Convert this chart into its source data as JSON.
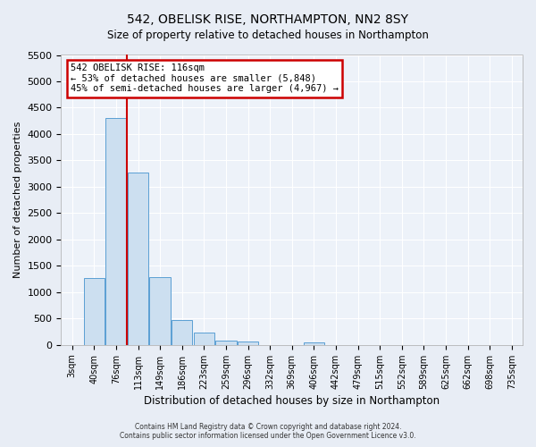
{
  "title": "542, OBELISK RISE, NORTHAMPTON, NN2 8SY",
  "subtitle": "Size of property relative to detached houses in Northampton",
  "xlabel": "Distribution of detached houses by size in Northampton",
  "ylabel": "Number of detached properties",
  "bar_labels": [
    "3sqm",
    "40sqm",
    "76sqm",
    "113sqm",
    "149sqm",
    "186sqm",
    "223sqm",
    "259sqm",
    "296sqm",
    "332sqm",
    "369sqm",
    "406sqm",
    "442sqm",
    "479sqm",
    "515sqm",
    "552sqm",
    "589sqm",
    "625sqm",
    "662sqm",
    "698sqm",
    "735sqm"
  ],
  "bar_values": [
    0,
    1270,
    4300,
    3270,
    1280,
    480,
    230,
    90,
    60,
    0,
    0,
    50,
    0,
    0,
    0,
    0,
    0,
    0,
    0,
    0,
    0
  ],
  "bar_color": "#ccdff0",
  "bar_edge_color": "#5a9fd4",
  "vline_x_idx": 2.5,
  "vline_color": "#cc0000",
  "annotation_title": "542 OBELISK RISE: 116sqm",
  "annotation_line1": "← 53% of detached houses are smaller (5,848)",
  "annotation_line2": "45% of semi-detached houses are larger (4,967) →",
  "annotation_box_color": "#cc0000",
  "ylim": [
    0,
    5500
  ],
  "yticks": [
    0,
    500,
    1000,
    1500,
    2000,
    2500,
    3000,
    3500,
    4000,
    4500,
    5000,
    5500
  ],
  "footer1": "Contains HM Land Registry data © Crown copyright and database right 2024.",
  "footer2": "Contains public sector information licensed under the Open Government Licence v3.0.",
  "bg_color": "#e8edf5",
  "plot_bg_color": "#edf2f9"
}
